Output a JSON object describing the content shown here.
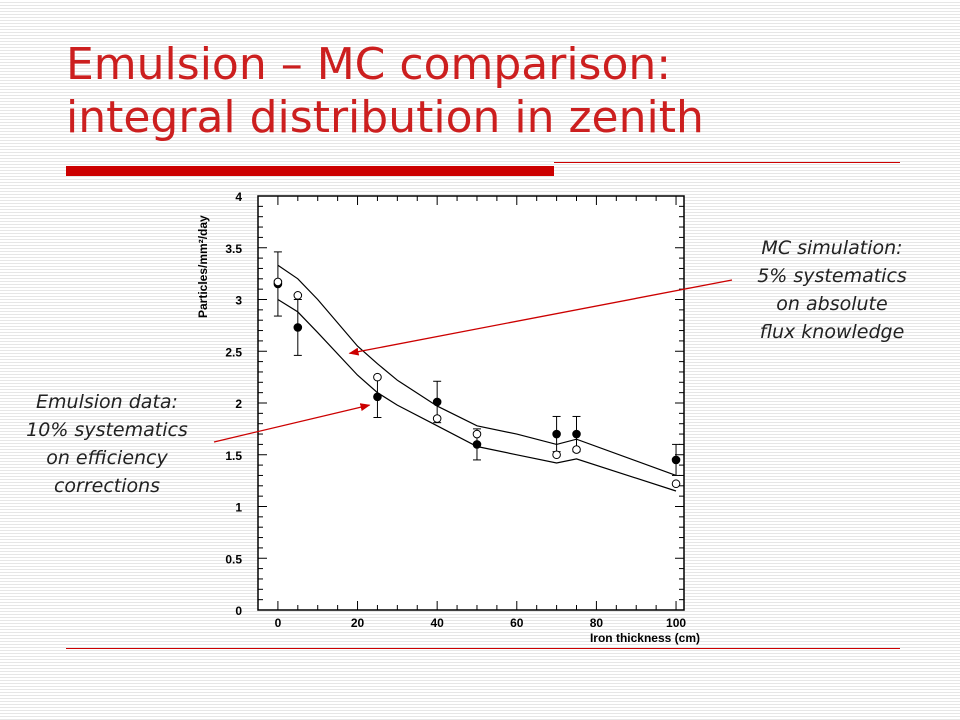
{
  "slide": {
    "title_line1": "Emulsion – MC comparison:",
    "title_line2": "integral distribution in zenith",
    "callout_mc": "MC simulation:\n5% systematics\non absolute\nflux knowledge",
    "callout_emulsion": "Emulsion data:\n10% systematics\non efficiency\ncorrections"
  },
  "colors": {
    "title": "#cc1f1f",
    "rule": "#cc0000",
    "arrow": "#cc0000"
  },
  "chart_data": {
    "type": "scatter",
    "xlabel": "Iron thickness (cm)",
    "ylabel": "Particles/mm²/day",
    "xlim": [
      -5,
      102
    ],
    "ylim": [
      0,
      4
    ],
    "x_ticks": [
      0,
      20,
      40,
      60,
      80,
      100
    ],
    "y_ticks": [
      0,
      0.5,
      1,
      1.5,
      2,
      2.5,
      3,
      3.5,
      4
    ],
    "grid": false,
    "series": [
      {
        "marker": "filled-circle",
        "points": [
          {
            "x": 0,
            "y": 3.15,
            "err": 0.31
          },
          {
            "x": 5,
            "y": 2.73,
            "err": 0.27
          },
          {
            "x": 25,
            "y": 2.06,
            "err": 0.2
          },
          {
            "x": 40,
            "y": 2.01,
            "err": 0.2
          },
          {
            "x": 50,
            "y": 1.6,
            "err": 0.15
          },
          {
            "x": 70,
            "y": 1.7,
            "err": 0.17
          },
          {
            "x": 75,
            "y": 1.7,
            "err": 0.17
          },
          {
            "x": 100,
            "y": 1.45,
            "err": 0.15
          }
        ]
      },
      {
        "marker": "open-circle",
        "points": [
          {
            "x": 0,
            "y": 3.17,
            "err": 0
          },
          {
            "x": 5,
            "y": 3.04,
            "err": 0
          },
          {
            "x": 25,
            "y": 2.25,
            "err": 0
          },
          {
            "x": 40,
            "y": 1.85,
            "err": 0
          },
          {
            "x": 50,
            "y": 1.7,
            "err": 0
          },
          {
            "x": 70,
            "y": 1.5,
            "err": 0
          },
          {
            "x": 75,
            "y": 1.55,
            "err": 0
          },
          {
            "x": 100,
            "y": 1.22,
            "err": 0
          }
        ]
      },
      {
        "marker": "line",
        "points": [
          {
            "x": 0,
            "y": 3.33
          },
          {
            "x": 5,
            "y": 3.2
          },
          {
            "x": 10,
            "y": 3.0
          },
          {
            "x": 20,
            "y": 2.55
          },
          {
            "x": 25,
            "y": 2.38
          },
          {
            "x": 30,
            "y": 2.22
          },
          {
            "x": 40,
            "y": 1.97
          },
          {
            "x": 50,
            "y": 1.78
          },
          {
            "x": 60,
            "y": 1.7
          },
          {
            "x": 70,
            "y": 1.6
          },
          {
            "x": 75,
            "y": 1.65
          },
          {
            "x": 100,
            "y": 1.3
          }
        ]
      },
      {
        "marker": "line",
        "points": [
          {
            "x": 0,
            "y": 3.0
          },
          {
            "x": 5,
            "y": 2.88
          },
          {
            "x": 10,
            "y": 2.68
          },
          {
            "x": 20,
            "y": 2.27
          },
          {
            "x": 25,
            "y": 2.1
          },
          {
            "x": 30,
            "y": 1.98
          },
          {
            "x": 40,
            "y": 1.78
          },
          {
            "x": 50,
            "y": 1.58
          },
          {
            "x": 60,
            "y": 1.5
          },
          {
            "x": 70,
            "y": 1.42
          },
          {
            "x": 75,
            "y": 1.46
          },
          {
            "x": 100,
            "y": 1.15
          }
        ]
      }
    ],
    "annotations": [
      {
        "text_ref": "callout_mc",
        "points_to": {
          "x": 18,
          "y": 2.48
        }
      },
      {
        "text_ref": "callout_emulsion",
        "points_to": {
          "x": 23,
          "y": 1.98
        }
      }
    ]
  }
}
